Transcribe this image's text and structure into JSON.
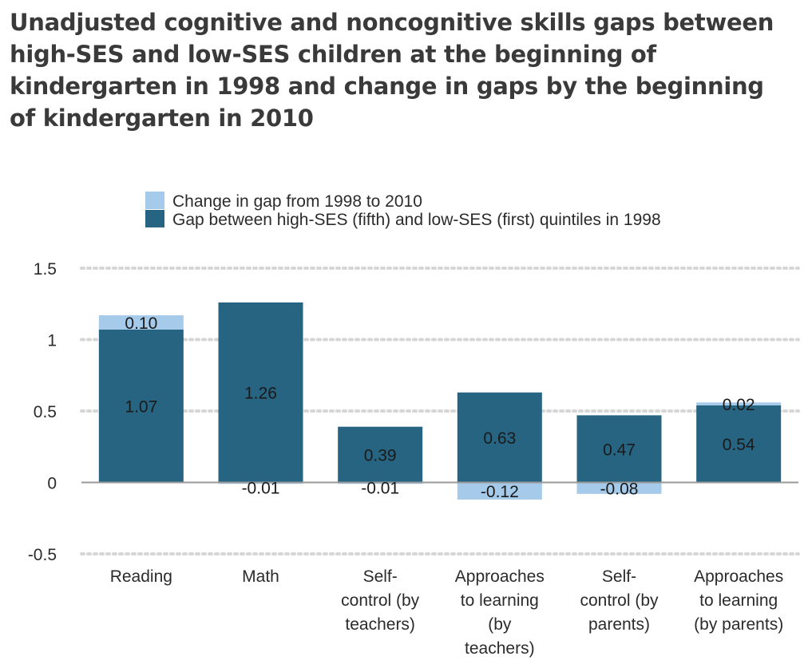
{
  "title": "Unadjusted cognitive and noncognitive skills gaps between high-SES and low-SES children at the beginning of kindergarten in 1998 and change in gaps by the beginning of kindergarten in 2010",
  "chart_data": {
    "type": "bar",
    "stacked": true,
    "title": "Unadjusted cognitive and noncognitive skills gaps between high-SES and low-SES children at the beginning of kindergarten in 1998 and change in gaps by the beginning of kindergarten in 2010",
    "categories": [
      [
        "Reading"
      ],
      [
        "Math"
      ],
      [
        "Self-",
        "control (by",
        "teachers)"
      ],
      [
        "Approaches",
        "to learning",
        "(by",
        "teachers)"
      ],
      [
        "Self-",
        "control (by",
        "parents)"
      ],
      [
        "Approaches",
        "to learning",
        "(by parents)"
      ]
    ],
    "series": [
      {
        "name": "Gap between high-SES (fifth) and low-SES (first) quintiles in 1998",
        "color": "#266482",
        "values": [
          1.07,
          1.26,
          0.39,
          0.63,
          0.47,
          0.54
        ],
        "labels": [
          "1.07",
          "1.26",
          "0.39",
          "0.63",
          "0.47",
          "0.54"
        ]
      },
      {
        "name": "Change in gap from 1998 to 2010",
        "color": "#a6cbea",
        "values": [
          0.1,
          -0.01,
          -0.01,
          -0.12,
          -0.08,
          0.02
        ],
        "labels": [
          "0.10",
          "-0.01",
          "-0.01",
          "-0.12",
          "-0.08",
          "0.02"
        ]
      }
    ],
    "legend": [
      {
        "label": "Change in gap from 1998 to 2010",
        "color": "#a6cbea"
      },
      {
        "label": "Gap between high-SES (fifth) and low-SES (first) quintiles in 1998",
        "color": "#266482"
      }
    ],
    "legend_position": "top",
    "yticks": [
      1.5,
      1,
      0.5,
      0,
      -0.5
    ],
    "ytick_labels": [
      "1.5",
      "1",
      "0.5",
      "0",
      "-0.5"
    ],
    "ylim": [
      -0.5,
      1.5
    ],
    "grid": true
  }
}
